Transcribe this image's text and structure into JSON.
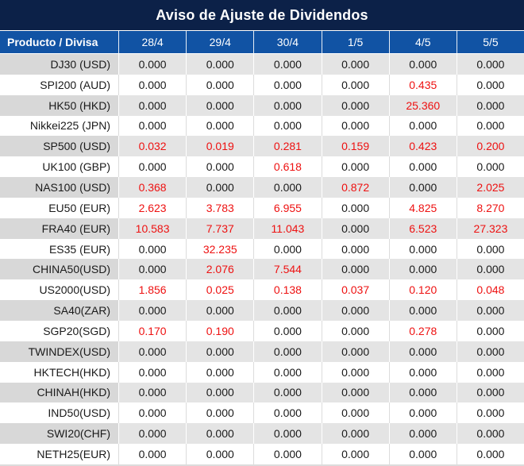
{
  "title": "Aviso de Ajuste de Dividendos",
  "colors": {
    "navy": "#0c2148",
    "header_blue": "#1153a4",
    "row_gray": "#e4e4e4",
    "product_gray": "#d8d8d8",
    "text": "#1a1a1a",
    "red": "#ee1111"
  },
  "table": {
    "product_header": "Producto / Divisa",
    "date_headers": [
      "28/4",
      "29/4",
      "30/4",
      "1/5",
      "4/5",
      "5/5"
    ],
    "rows": [
      {
        "product": "DJ30 (USD)",
        "values": [
          "0.000",
          "0.000",
          "0.000",
          "0.000",
          "0.000",
          "0.000"
        ],
        "red": [
          0,
          0,
          0,
          0,
          0,
          0
        ]
      },
      {
        "product": "SPI200 (AUD)",
        "values": [
          "0.000",
          "0.000",
          "0.000",
          "0.000",
          "0.435",
          "0.000"
        ],
        "red": [
          0,
          0,
          0,
          0,
          1,
          0
        ]
      },
      {
        "product": "HK50 (HKD)",
        "values": [
          "0.000",
          "0.000",
          "0.000",
          "0.000",
          "25.360",
          "0.000"
        ],
        "red": [
          0,
          0,
          0,
          0,
          1,
          0
        ]
      },
      {
        "product": "Nikkei225 (JPN)",
        "values": [
          "0.000",
          "0.000",
          "0.000",
          "0.000",
          "0.000",
          "0.000"
        ],
        "red": [
          0,
          0,
          0,
          0,
          0,
          0
        ]
      },
      {
        "product": "SP500 (USD)",
        "values": [
          "0.032",
          "0.019",
          "0.281",
          "0.159",
          "0.423",
          "0.200"
        ],
        "red": [
          1,
          1,
          1,
          1,
          1,
          1
        ]
      },
      {
        "product": "UK100 (GBP)",
        "values": [
          "0.000",
          "0.000",
          "0.618",
          "0.000",
          "0.000",
          "0.000"
        ],
        "red": [
          0,
          0,
          1,
          0,
          0,
          0
        ]
      },
      {
        "product": "NAS100 (USD)",
        "values": [
          "0.368",
          "0.000",
          "0.000",
          "0.872",
          "0.000",
          "2.025"
        ],
        "red": [
          1,
          0,
          0,
          1,
          0,
          1
        ]
      },
      {
        "product": "EU50 (EUR)",
        "values": [
          "2.623",
          "3.783",
          "6.955",
          "0.000",
          "4.825",
          "8.270"
        ],
        "red": [
          1,
          1,
          1,
          0,
          1,
          1
        ]
      },
      {
        "product": "FRA40 (EUR)",
        "values": [
          "10.583",
          "7.737",
          "11.043",
          "0.000",
          "6.523",
          "27.323"
        ],
        "red": [
          1,
          1,
          1,
          0,
          1,
          1
        ]
      },
      {
        "product": "ES35 (EUR)",
        "values": [
          "0.000",
          "32.235",
          "0.000",
          "0.000",
          "0.000",
          "0.000"
        ],
        "red": [
          0,
          1,
          0,
          0,
          0,
          0
        ]
      },
      {
        "product": "CHINA50(USD)",
        "values": [
          "0.000",
          "2.076",
          "7.544",
          "0.000",
          "0.000",
          "0.000"
        ],
        "red": [
          0,
          1,
          1,
          0,
          0,
          0
        ]
      },
      {
        "product": "US2000(USD)",
        "values": [
          "1.856",
          "0.025",
          "0.138",
          "0.037",
          "0.120",
          "0.048"
        ],
        "red": [
          1,
          1,
          1,
          1,
          1,
          1
        ]
      },
      {
        "product": "SA40(ZAR)",
        "values": [
          "0.000",
          "0.000",
          "0.000",
          "0.000",
          "0.000",
          "0.000"
        ],
        "red": [
          0,
          0,
          0,
          0,
          0,
          0
        ]
      },
      {
        "product": "SGP20(SGD)",
        "values": [
          "0.170",
          "0.190",
          "0.000",
          "0.000",
          "0.278",
          "0.000"
        ],
        "red": [
          1,
          1,
          0,
          0,
          1,
          0
        ]
      },
      {
        "product": "TWINDEX(USD)",
        "values": [
          "0.000",
          "0.000",
          "0.000",
          "0.000",
          "0.000",
          "0.000"
        ],
        "red": [
          0,
          0,
          0,
          0,
          0,
          0
        ]
      },
      {
        "product": "HKTECH(HKD)",
        "values": [
          "0.000",
          "0.000",
          "0.000",
          "0.000",
          "0.000",
          "0.000"
        ],
        "red": [
          0,
          0,
          0,
          0,
          0,
          0
        ]
      },
      {
        "product": "CHINAH(HKD)",
        "values": [
          "0.000",
          "0.000",
          "0.000",
          "0.000",
          "0.000",
          "0.000"
        ],
        "red": [
          0,
          0,
          0,
          0,
          0,
          0
        ]
      },
      {
        "product": "IND50(USD)",
        "values": [
          "0.000",
          "0.000",
          "0.000",
          "0.000",
          "0.000",
          "0.000"
        ],
        "red": [
          0,
          0,
          0,
          0,
          0,
          0
        ]
      },
      {
        "product": "SWI20(CHF)",
        "values": [
          "0.000",
          "0.000",
          "0.000",
          "0.000",
          "0.000",
          "0.000"
        ],
        "red": [
          0,
          0,
          0,
          0,
          0,
          0
        ]
      },
      {
        "product": "NETH25(EUR)",
        "values": [
          "0.000",
          "0.000",
          "0.000",
          "0.000",
          "0.000",
          "0.000"
        ],
        "red": [
          0,
          0,
          0,
          0,
          0,
          0
        ]
      }
    ]
  }
}
